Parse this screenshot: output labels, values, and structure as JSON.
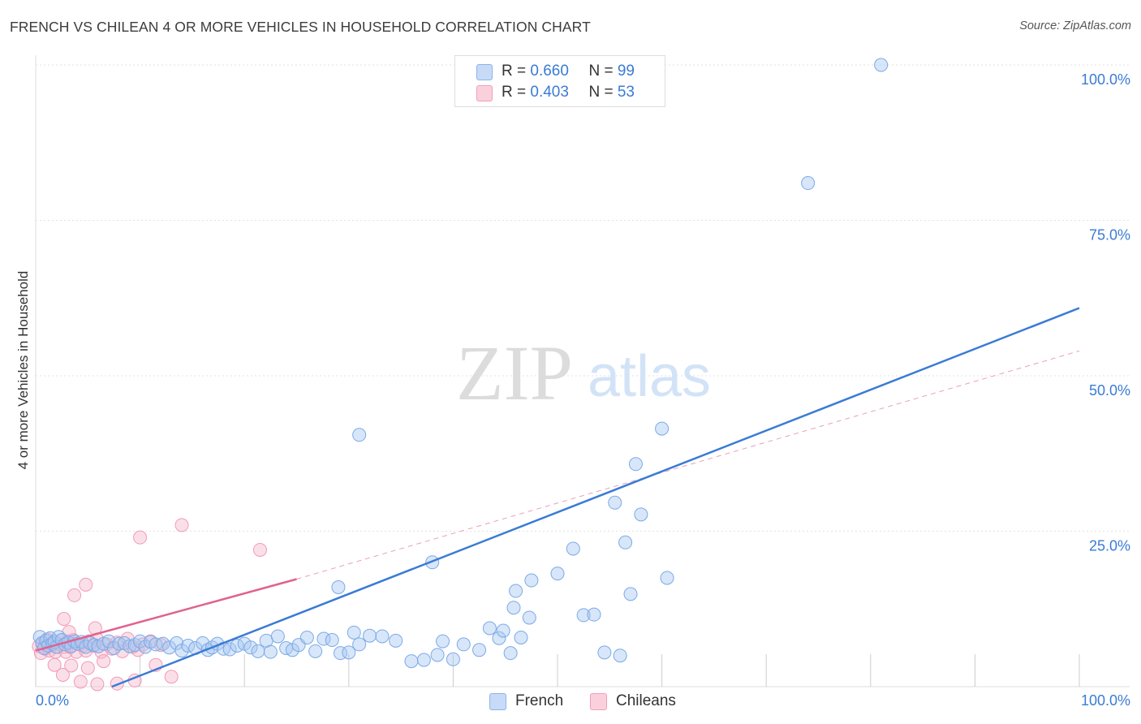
{
  "title": "FRENCH VS CHILEAN 4 OR MORE VEHICLES IN HOUSEHOLD CORRELATION CHART",
  "source": "Source: ZipAtlas.com",
  "watermark": {
    "zip": "ZIP",
    "atlas": "atlas"
  },
  "legend": {
    "french": {
      "r_label": "R = ",
      "r_value": "0.660",
      "n_label": "N = ",
      "n_value": "99",
      "color": "#a9c8f2"
    },
    "chileans": {
      "r_label": "R = ",
      "r_value": "0.403",
      "n_label": "N = ",
      "n_value": "53",
      "color": "#f7b8cb"
    }
  },
  "bottom_legend": {
    "french": "French",
    "chileans": "Chileans"
  },
  "chart_data": {
    "type": "scatter",
    "title": "FRENCH VS CHILEAN 4 OR MORE VEHICLES IN HOUSEHOLD CORRELATION CHART",
    "xlabel": "",
    "ylabel": "4 or more Vehicles in Household",
    "xlim": [
      0,
      100
    ],
    "ylim": [
      0,
      100
    ],
    "x_tick_labels": [
      "0.0%",
      "100.0%"
    ],
    "y_ticks": [
      25,
      50,
      75,
      100
    ],
    "y_tick_labels": [
      "25.0%",
      "50.0%",
      "75.0%",
      "100.0%"
    ],
    "grid": true,
    "legend_position": "top-center",
    "colors": {
      "french": "#3a7bd5",
      "french_fill": "#a9c8f2",
      "chileans": "#e0628f",
      "chileans_fill": "#f7b8cb",
      "tick_text": "#3a7bd5"
    },
    "series": [
      {
        "name": "French",
        "R": 0.66,
        "N": 99,
        "trend": {
          "x": [
            7.3,
            100
          ],
          "y": [
            0,
            60.9
          ]
        },
        "points": [
          [
            0.4,
            8.0
          ],
          [
            0.6,
            7.0
          ],
          [
            0.8,
            6.2
          ],
          [
            1.0,
            7.4
          ],
          [
            1.2,
            6.6
          ],
          [
            1.4,
            7.8
          ],
          [
            1.6,
            6.9
          ],
          [
            1.8,
            7.2
          ],
          [
            2.0,
            6.4
          ],
          [
            2.2,
            8.0
          ],
          [
            2.5,
            7.5
          ],
          [
            2.8,
            6.8
          ],
          [
            3.1,
            7.1
          ],
          [
            3.4,
            6.5
          ],
          [
            3.7,
            7.3
          ],
          [
            4.0,
            6.9
          ],
          [
            4.4,
            7.2
          ],
          [
            4.8,
            6.4
          ],
          [
            5.2,
            7.0
          ],
          [
            5.6,
            6.7
          ],
          [
            6.0,
            6.5
          ],
          [
            6.5,
            6.9
          ],
          [
            7.0,
            7.3
          ],
          [
            7.5,
            6.2
          ],
          [
            8.0,
            6.9
          ],
          [
            8.5,
            7.0
          ],
          [
            9.0,
            6.5
          ],
          [
            9.5,
            6.7
          ],
          [
            10.0,
            7.3
          ],
          [
            10.5,
            6.4
          ],
          [
            11.0,
            7.2
          ],
          [
            11.5,
            6.8
          ],
          [
            12.2,
            6.9
          ],
          [
            12.8,
            6.3
          ],
          [
            13.5,
            7.0
          ],
          [
            14.0,
            5.8
          ],
          [
            14.6,
            6.6
          ],
          [
            15.3,
            6.2
          ],
          [
            16.0,
            7.0
          ],
          [
            16.5,
            5.9
          ],
          [
            16.9,
            6.3
          ],
          [
            17.4,
            6.9
          ],
          [
            18.0,
            6.1
          ],
          [
            18.6,
            6.0
          ],
          [
            19.3,
            6.6
          ],
          [
            20.0,
            6.9
          ],
          [
            20.6,
            6.3
          ],
          [
            21.3,
            5.7
          ],
          [
            22.1,
            7.4
          ],
          [
            22.5,
            5.6
          ],
          [
            23.2,
            8.1
          ],
          [
            24.0,
            6.2
          ],
          [
            24.6,
            5.9
          ],
          [
            25.2,
            6.7
          ],
          [
            26.0,
            7.9
          ],
          [
            26.8,
            5.7
          ],
          [
            27.6,
            7.7
          ],
          [
            28.4,
            7.5
          ],
          [
            29.2,
            5.4
          ],
          [
            30.0,
            5.5
          ],
          [
            31.0,
            6.8
          ],
          [
            30.5,
            8.7
          ],
          [
            32.0,
            8.2
          ],
          [
            33.2,
            8.1
          ],
          [
            34.5,
            7.4
          ],
          [
            36.0,
            4.1
          ],
          [
            37.2,
            4.3
          ],
          [
            38.5,
            5.1
          ],
          [
            39.0,
            7.3
          ],
          [
            40.0,
            4.4
          ],
          [
            29.0,
            16.0
          ],
          [
            41.0,
            6.8
          ],
          [
            42.5,
            5.9
          ],
          [
            43.5,
            9.4
          ],
          [
            44.4,
            7.8
          ],
          [
            44.8,
            9.0
          ],
          [
            45.5,
            5.4
          ],
          [
            46.5,
            7.9
          ],
          [
            47.3,
            11.1
          ],
          [
            45.8,
            12.7
          ],
          [
            38.0,
            20.0
          ],
          [
            46.0,
            15.4
          ],
          [
            47.5,
            17.1
          ],
          [
            50.0,
            18.2
          ],
          [
            51.5,
            22.2
          ],
          [
            52.5,
            11.5
          ],
          [
            53.5,
            11.6
          ],
          [
            54.5,
            5.5
          ],
          [
            55.5,
            29.6
          ],
          [
            56.5,
            23.2
          ],
          [
            57.0,
            14.9
          ],
          [
            58.0,
            27.7
          ],
          [
            31.0,
            40.5
          ],
          [
            57.5,
            35.8
          ],
          [
            60.0,
            41.5
          ],
          [
            56.0,
            5.0
          ],
          [
            60.5,
            17.5
          ],
          [
            74.0,
            81.0
          ],
          [
            81.0,
            100.0
          ]
        ]
      },
      {
        "name": "Chileans",
        "R": 0.403,
        "N": 53,
        "trend": {
          "x": [
            0,
            25
          ],
          "y": [
            5.8,
            17.3
          ]
        },
        "trend_extension": {
          "x": [
            25,
            100
          ],
          "y": [
            17.3,
            54.0
          ]
        },
        "points": [
          [
            0.3,
            6.5
          ],
          [
            0.5,
            5.4
          ],
          [
            0.7,
            7.0
          ],
          [
            0.9,
            6.1
          ],
          [
            1.1,
            7.6
          ],
          [
            1.3,
            5.8
          ],
          [
            1.5,
            6.8
          ],
          [
            1.7,
            7.3
          ],
          [
            1.9,
            5.6
          ],
          [
            2.1,
            6.4
          ],
          [
            2.3,
            6.8
          ],
          [
            2.5,
            7.5
          ],
          [
            2.7,
            6.4
          ],
          [
            2.9,
            5.6
          ],
          [
            3.1,
            7.3
          ],
          [
            3.3,
            6.4
          ],
          [
            3.6,
            7.5
          ],
          [
            3.9,
            5.6
          ],
          [
            4.2,
            6.8
          ],
          [
            4.5,
            6.6
          ],
          [
            4.8,
            5.8
          ],
          [
            5.1,
            7.3
          ],
          [
            5.5,
            6.6
          ],
          [
            5.9,
            7.6
          ],
          [
            6.3,
            5.6
          ],
          [
            6.8,
            6.8
          ],
          [
            7.3,
            6.1
          ],
          [
            7.8,
            7.1
          ],
          [
            8.3,
            5.7
          ],
          [
            8.8,
            7.7
          ],
          [
            9.3,
            6.4
          ],
          [
            9.8,
            5.9
          ],
          [
            10.3,
            6.8
          ],
          [
            11.0,
            7.3
          ],
          [
            12.0,
            6.7
          ],
          [
            1.8,
            3.5
          ],
          [
            2.6,
            1.9
          ],
          [
            3.4,
            3.4
          ],
          [
            4.3,
            0.8
          ],
          [
            5.0,
            3.0
          ],
          [
            5.9,
            0.4
          ],
          [
            6.5,
            4.1
          ],
          [
            7.8,
            0.5
          ],
          [
            9.5,
            1.0
          ],
          [
            11.5,
            3.5
          ],
          [
            13.0,
            1.6
          ],
          [
            2.7,
            10.9
          ],
          [
            3.2,
            8.8
          ],
          [
            3.7,
            14.7
          ],
          [
            4.8,
            16.4
          ],
          [
            5.7,
            9.4
          ],
          [
            10.0,
            24.0
          ],
          [
            14.0,
            26.0
          ],
          [
            21.5,
            22.0
          ]
        ]
      }
    ]
  }
}
